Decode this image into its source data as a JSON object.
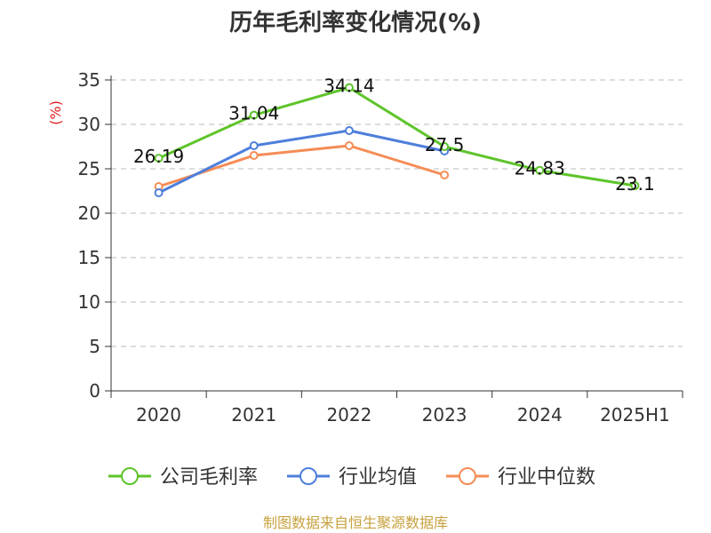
{
  "chart_data": {
    "type": "line",
    "title": "历年毛利率变化情况(%)",
    "ylabel": "(%)",
    "categories": [
      "2020",
      "2021",
      "2022",
      "2023",
      "2024",
      "2025H1"
    ],
    "ylim": [
      0,
      35
    ],
    "yticks": [
      "0",
      "5",
      "10",
      "15",
      "20",
      "25",
      "30",
      "35"
    ],
    "grid": true,
    "legend_position": "bottom",
    "series": [
      {
        "name": "公司毛利率",
        "color": "#5ec42a",
        "values": [
          26.19,
          31.04,
          34.14,
          27.5,
          24.83,
          23.1
        ],
        "labels": [
          "26.19",
          "31.04",
          "34.14",
          "27.5",
          "24.83",
          "23.1"
        ]
      },
      {
        "name": "行业均值",
        "color": "#4e7fdb",
        "values": [
          22.3,
          27.6,
          29.3,
          27.0,
          null,
          null
        ]
      },
      {
        "name": "行业中位数",
        "color": "#f58c55",
        "values": [
          23.0,
          26.5,
          27.6,
          24.3,
          null,
          null
        ]
      }
    ]
  },
  "source": "制图数据来自恒生聚源数据库"
}
